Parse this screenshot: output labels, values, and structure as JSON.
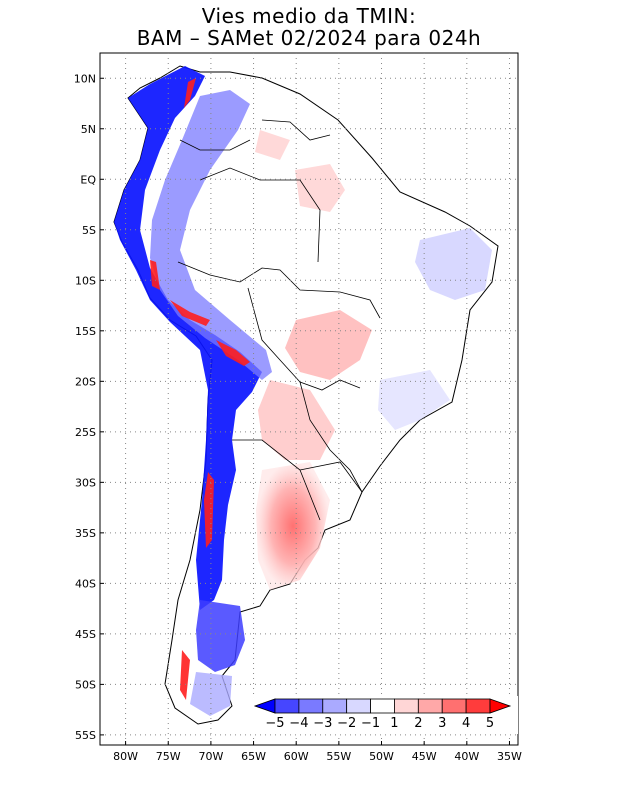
{
  "title": {
    "line1": "Vies medio da TMIN:",
    "line2": "BAM – SAMet 02/2024  para 024h"
  },
  "map": {
    "lat_labels": [
      "10N",
      "5N",
      "EQ",
      "5S",
      "10S",
      "15S",
      "20S",
      "25S",
      "30S",
      "35S",
      "40S",
      "45S",
      "50S",
      "55S"
    ],
    "lon_labels": [
      "80W",
      "75W",
      "70W",
      "65W",
      "60W",
      "55W",
      "50W",
      "45W",
      "40W",
      "35W"
    ],
    "lat_values": [
      10,
      5,
      0,
      -5,
      -10,
      -15,
      -20,
      -25,
      -30,
      -35,
      -40,
      -45,
      -50,
      -55
    ],
    "lon_values": [
      -80,
      -75,
      -70,
      -65,
      -60,
      -55,
      -50,
      -45,
      -40,
      -35
    ],
    "lon_range": [
      -83,
      -34
    ],
    "lat_range": [
      12.5,
      -56
    ],
    "grid": "dotted"
  },
  "colorbar": {
    "labels": [
      "−5",
      "−4",
      "−3",
      "−2",
      "−1",
      "1",
      "2",
      "3",
      "4",
      "5"
    ],
    "colors": [
      "#0000ff",
      "#4646ff",
      "#7a7aff",
      "#aaaaff",
      "#d8d8ff",
      "#ffffff",
      "#ffd6d6",
      "#ffa8a8",
      "#ff7070",
      "#ff3c3c",
      "#ff0000"
    ]
  }
}
